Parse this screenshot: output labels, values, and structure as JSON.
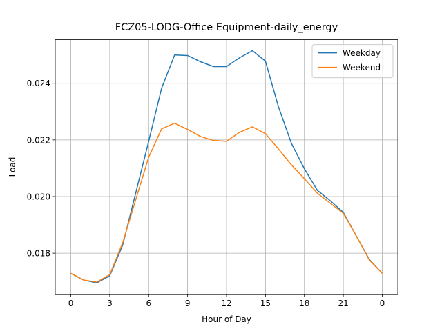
{
  "chart_data": {
    "type": "line",
    "title": "FCZ05-LODG-Office Equipment-daily_energy",
    "xlabel": "Hour of Day",
    "ylabel": "Load",
    "x": [
      0,
      1,
      2,
      3,
      4,
      5,
      6,
      7,
      8,
      9,
      10,
      11,
      12,
      13,
      14,
      15,
      16,
      17,
      18,
      19,
      20,
      21,
      22,
      23,
      24
    ],
    "series": [
      {
        "name": "Weekday",
        "color": "#1f77b4",
        "values": [
          0.01729,
          0.01705,
          0.01695,
          0.0172,
          0.01829,
          0.02012,
          0.02195,
          0.02383,
          0.025,
          0.02498,
          0.02476,
          0.02459,
          0.02459,
          0.0249,
          0.02515,
          0.02478,
          0.02317,
          0.02188,
          0.02098,
          0.02022,
          0.01985,
          0.01944,
          0.01861,
          0.01778,
          0.01729
        ]
      },
      {
        "name": "Weekend",
        "color": "#ff7f0e",
        "values": [
          0.01729,
          0.01705,
          0.01698,
          0.01724,
          0.01837,
          0.01988,
          0.02139,
          0.02239,
          0.02259,
          0.02237,
          0.02212,
          0.02198,
          0.02195,
          0.02227,
          0.02246,
          0.02222,
          0.02168,
          0.02112,
          0.02063,
          0.02012,
          0.01976,
          0.01941,
          0.01861,
          0.01776,
          0.01729
        ]
      }
    ],
    "xlim": [
      -1.2,
      25.2
    ],
    "xticks": [
      0,
      3,
      6,
      9,
      12,
      15,
      18,
      21,
      {
        "value": 24,
        "label": "0"
      }
    ],
    "ylim": [
      0.016537,
      0.025537
    ],
    "yticks": [
      0.018,
      {
        "value": 0.02,
        "label": "0.020"
      },
      0.022,
      0.024
    ],
    "grid": true,
    "legend": "upper right"
  }
}
